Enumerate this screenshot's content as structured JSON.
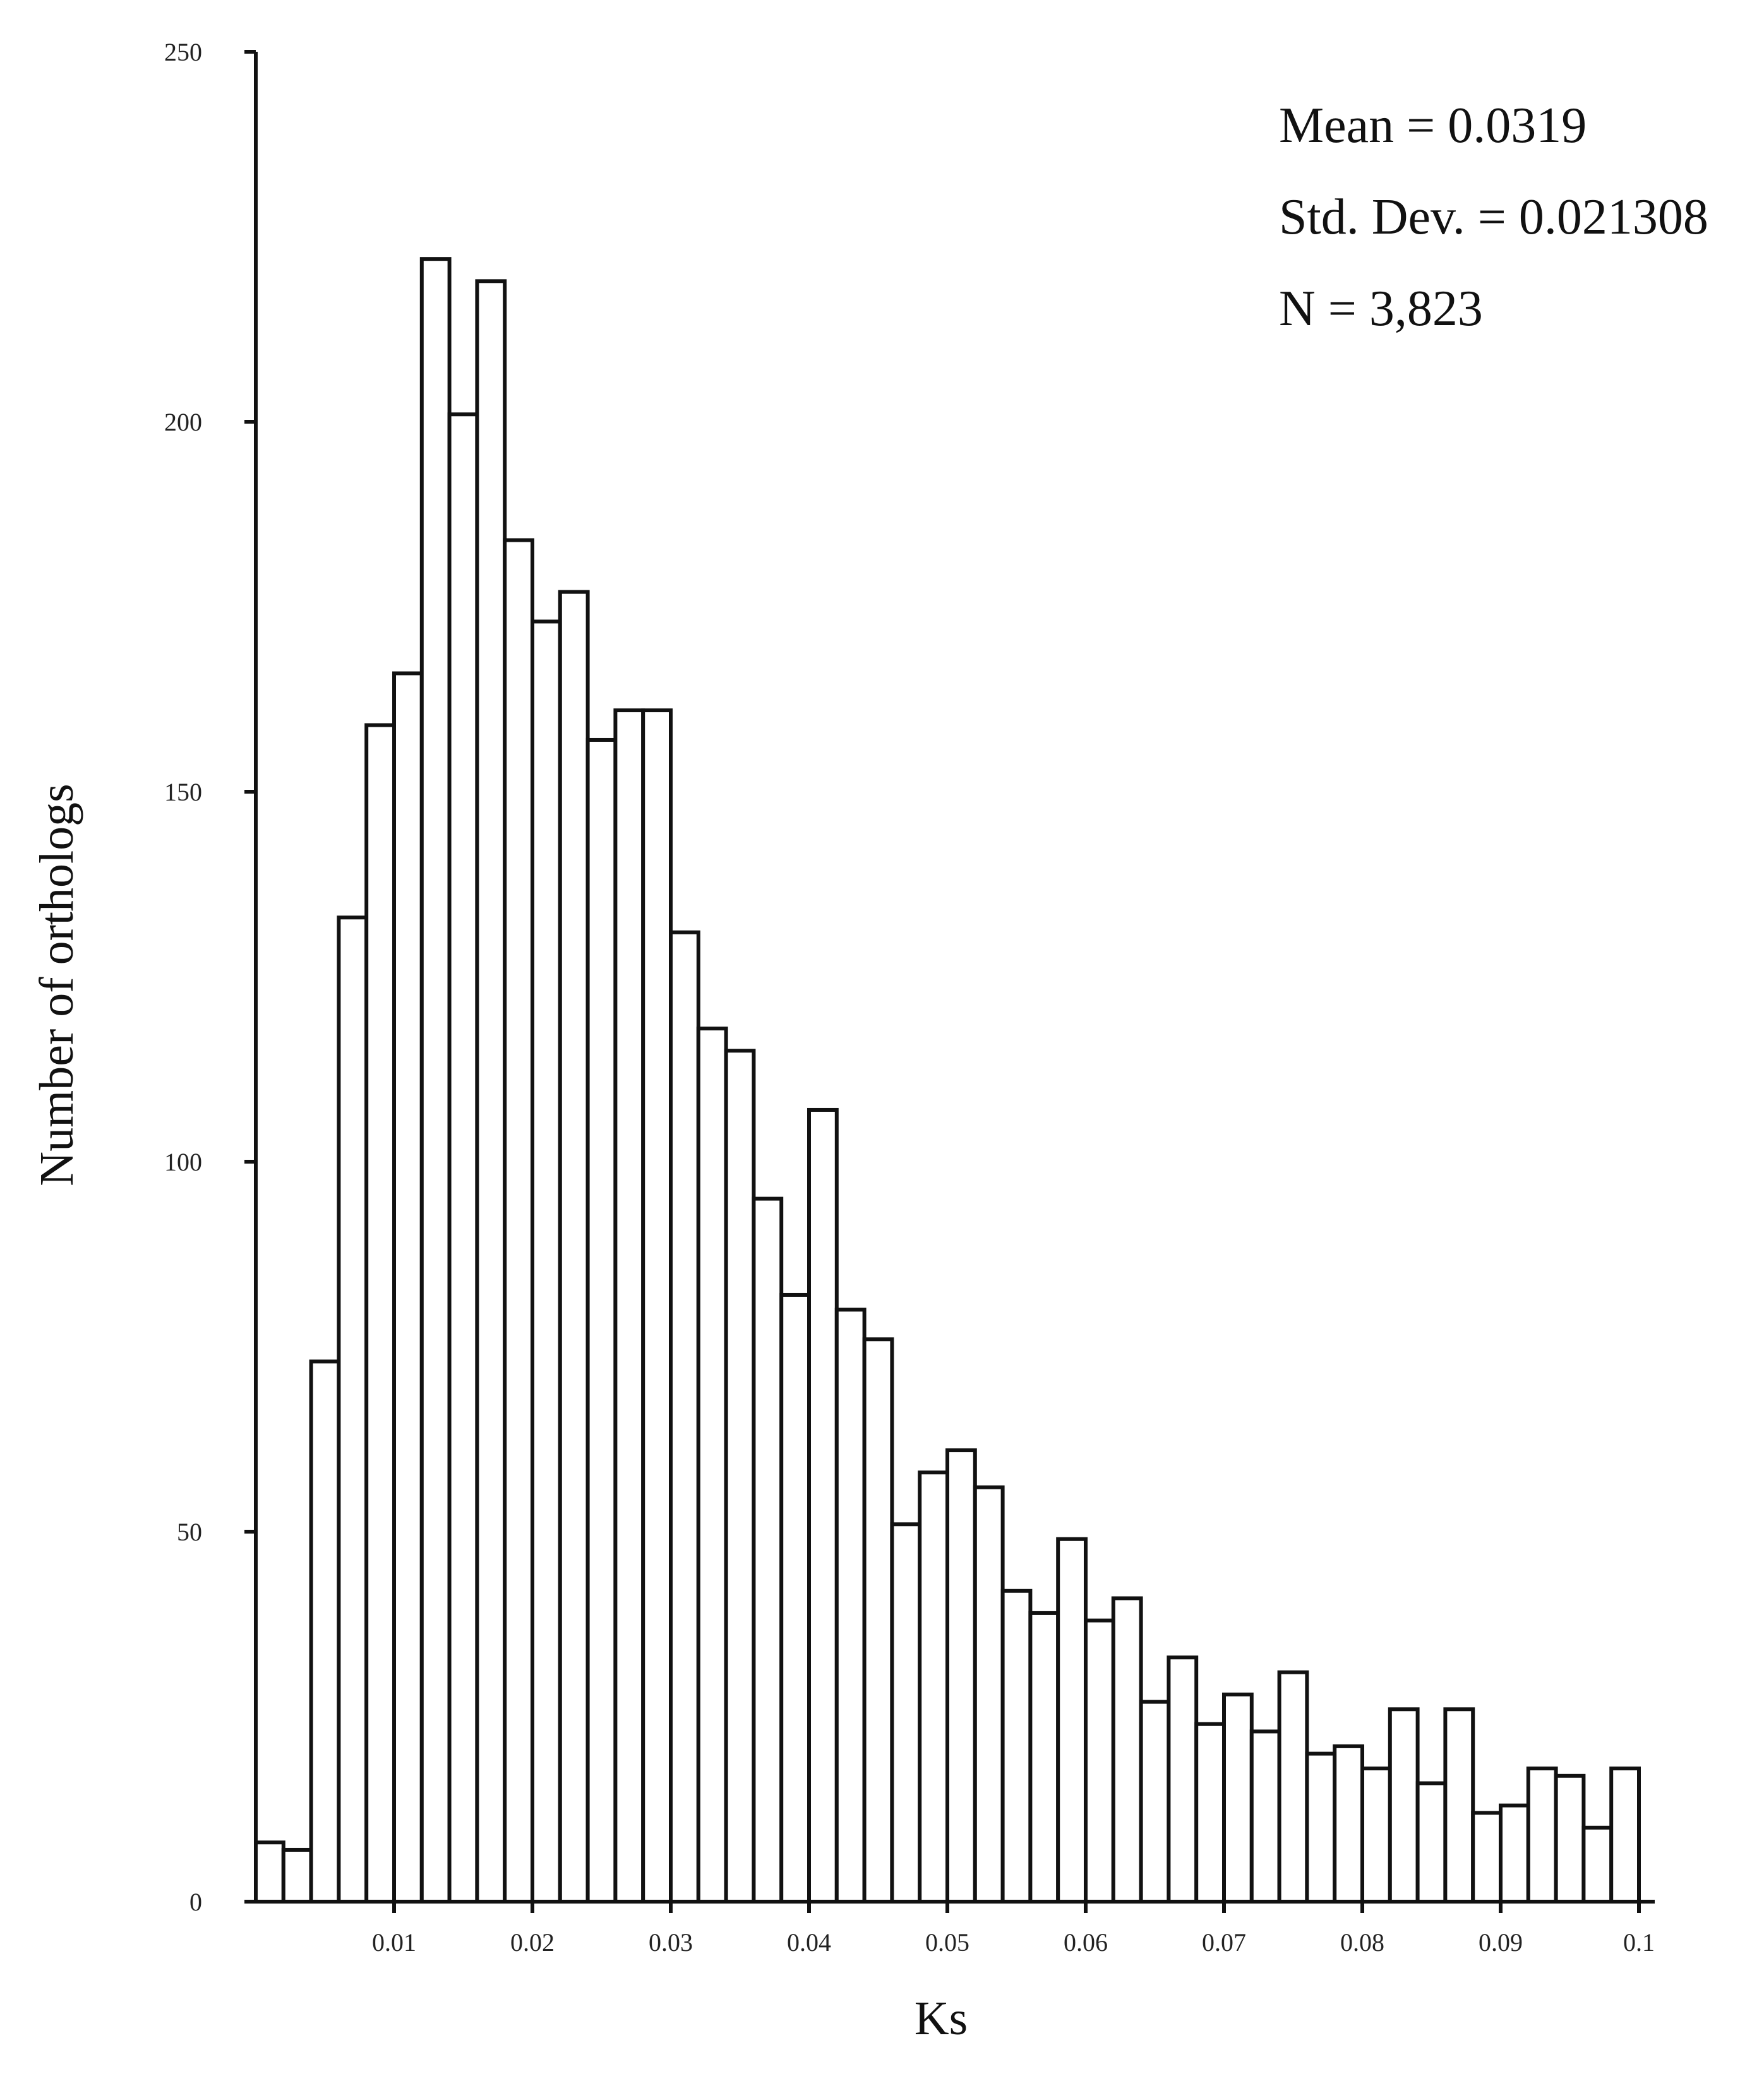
{
  "chart_data": {
    "type": "bar",
    "subtype": "histogram",
    "xlabel": "Ks",
    "ylabel": "Number of orthologs",
    "xlim": [
      0,
      0.1
    ],
    "ylim": [
      0,
      250
    ],
    "bin_width": 0.002,
    "x_ticks": [
      0.01,
      0.02,
      0.03,
      0.04,
      0.05,
      0.06,
      0.07,
      0.08,
      0.09,
      0.1
    ],
    "x_tick_labels": [
      "0.01",
      "0.02",
      "0.03",
      "0.04",
      "0.05",
      "0.06",
      "0.07",
      "0.08",
      "0.09",
      "0.1"
    ],
    "y_ticks": [
      0,
      50,
      100,
      150,
      200,
      250
    ],
    "y_tick_labels": [
      "0",
      "50",
      "100",
      "150",
      "200",
      "250"
    ],
    "bin_start": [
      0.0,
      0.002,
      0.004,
      0.006,
      0.008,
      0.01,
      0.012,
      0.014,
      0.016,
      0.018,
      0.02,
      0.022,
      0.024,
      0.026,
      0.028,
      0.03,
      0.032,
      0.034,
      0.036,
      0.038,
      0.04,
      0.042,
      0.044,
      0.046,
      0.048,
      0.05,
      0.052,
      0.054,
      0.056,
      0.058,
      0.06,
      0.062,
      0.064,
      0.066,
      0.068,
      0.07,
      0.072,
      0.074,
      0.076,
      0.078,
      0.08,
      0.082,
      0.084,
      0.086,
      0.088,
      0.09,
      0.092,
      0.094,
      0.096,
      0.098
    ],
    "values": [
      8,
      7,
      73,
      133,
      159,
      166,
      222,
      201,
      219,
      184,
      173,
      177,
      157,
      161,
      161,
      131,
      118,
      115,
      95,
      82,
      107,
      80,
      76,
      51,
      58,
      61,
      56,
      42,
      39,
      49,
      38,
      41,
      27,
      33,
      24,
      28,
      23,
      31,
      20,
      21,
      18,
      26,
      16,
      26,
      12,
      13,
      18,
      17,
      10,
      18
    ],
    "grid": false,
    "legend": "none",
    "annotations": {
      "mean": "Mean = 0.0319",
      "std_dev": "Std. Dev. = 0.021308",
      "n": "N = 3,823"
    },
    "colors": {
      "bar_fill": "#ffffff",
      "bar_stroke": "#111111"
    }
  }
}
